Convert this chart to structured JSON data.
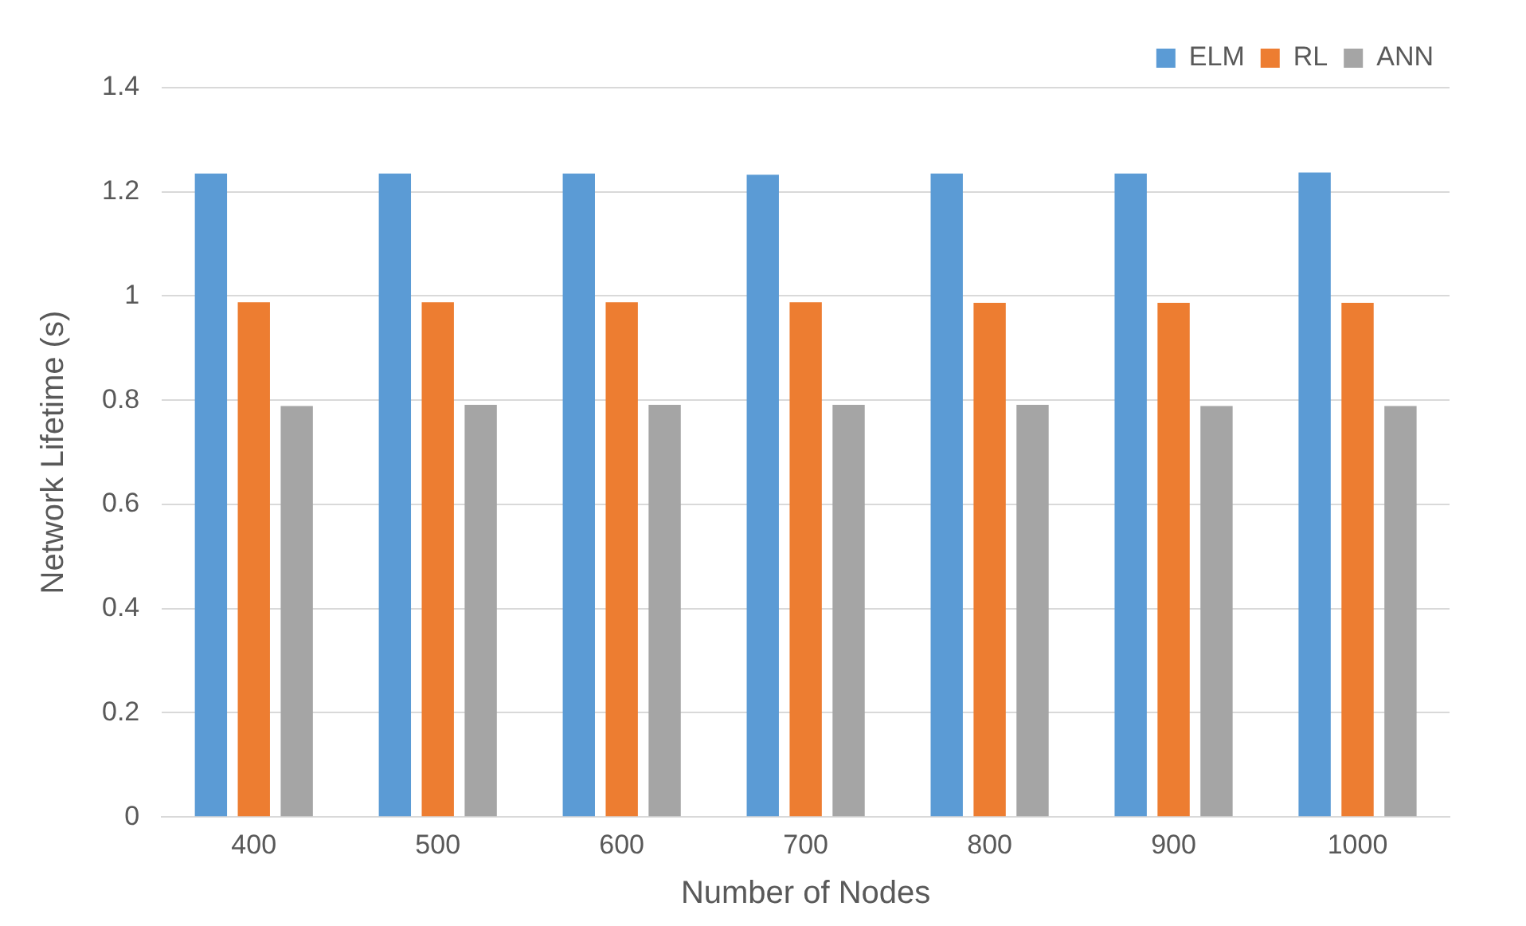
{
  "chart_data": {
    "type": "bar",
    "xlabel": "Number of Nodes",
    "ylabel": "Network Lifetime (s)",
    "categories": [
      "400",
      "500",
      "600",
      "700",
      "800",
      "900",
      "1000"
    ],
    "series": [
      {
        "name": "ELM",
        "color": "#5b9bd5",
        "values": [
          1.235,
          1.235,
          1.235,
          1.233,
          1.235,
          1.235,
          1.237
        ]
      },
      {
        "name": "RL",
        "color": "#ed7d31",
        "values": [
          0.988,
          0.988,
          0.988,
          0.988,
          0.987,
          0.987,
          0.987
        ]
      },
      {
        "name": "ANN",
        "color": "#a5a5a5",
        "values": [
          0.789,
          0.791,
          0.791,
          0.791,
          0.791,
          0.789,
          0.789
        ]
      }
    ],
    "ylim": [
      0,
      1.4
    ],
    "yticks": [
      0,
      0.2,
      0.4,
      0.6,
      0.8,
      1,
      1.2,
      1.4
    ],
    "grid": "y",
    "legend": "top right"
  }
}
